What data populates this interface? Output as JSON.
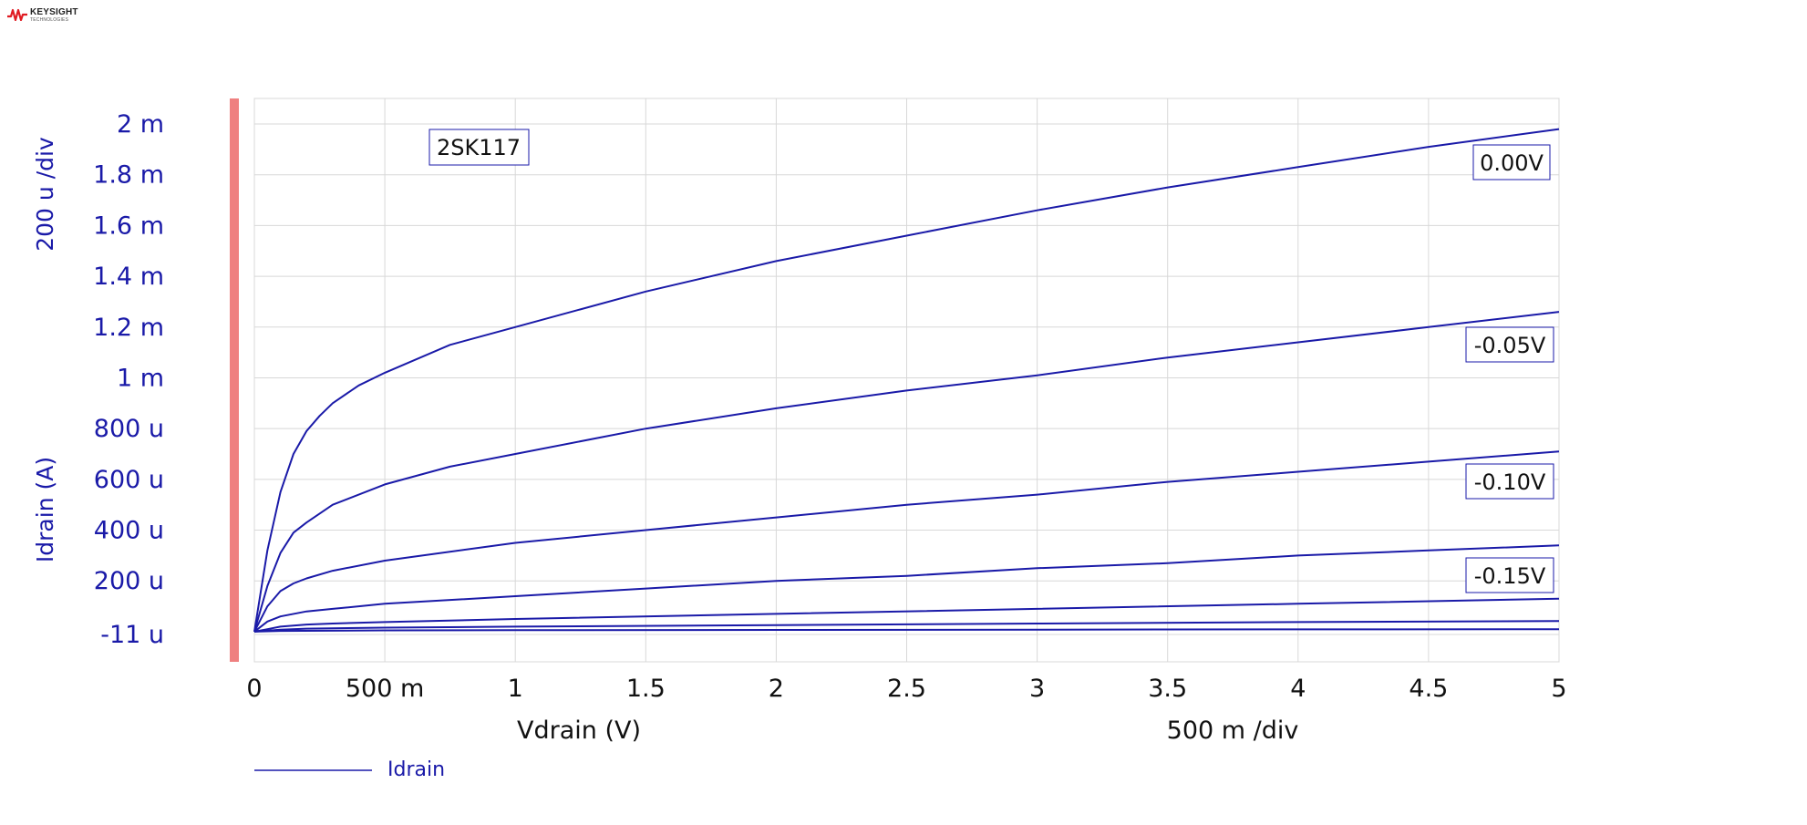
{
  "logo": {
    "name": "KEYSIGHT",
    "subtitle": "TECHNOLOGIES"
  },
  "colors": {
    "series": "#1a1aa8",
    "axis_text": "#1a1aa8",
    "x_axis_text": "#111111",
    "grid": "#d8d8d8",
    "marker_bar": "#ef8080"
  },
  "chart_data": {
    "type": "line",
    "annotation": "2SK117",
    "xlabel": "Vdrain (V)",
    "ylabel": "Idrain (A)",
    "x_div_label": "500 m /div",
    "y_div_label": "200 u /div",
    "xlim": [
      0,
      5
    ],
    "ylim": [
      -1.1e-05,
      0.002
    ],
    "x_ticks": [
      {
        "value": 0,
        "label": "0"
      },
      {
        "value": 0.5,
        "label": "500 m"
      },
      {
        "value": 1,
        "label": "1"
      },
      {
        "value": 1.5,
        "label": "1.5"
      },
      {
        "value": 2,
        "label": "2"
      },
      {
        "value": 2.5,
        "label": "2.5"
      },
      {
        "value": 3,
        "label": "3"
      },
      {
        "value": 3.5,
        "label": "3.5"
      },
      {
        "value": 4,
        "label": "4"
      },
      {
        "value": 4.5,
        "label": "4.5"
      },
      {
        "value": 5,
        "label": "5"
      }
    ],
    "y_ticks": [
      {
        "value": -1.1e-05,
        "label": "-11 u"
      },
      {
        "value": 0.0002,
        "label": "200 u"
      },
      {
        "value": 0.0004,
        "label": "400 u"
      },
      {
        "value": 0.0006,
        "label": "600 u"
      },
      {
        "value": 0.0008,
        "label": "800 u"
      },
      {
        "value": 0.001,
        "label": "1 m"
      },
      {
        "value": 0.0012,
        "label": "1.2 m"
      },
      {
        "value": 0.0014,
        "label": "1.4 m"
      },
      {
        "value": 0.0016,
        "label": "1.6 m"
      },
      {
        "value": 0.0018,
        "label": "1.8 m"
      },
      {
        "value": 0.002,
        "label": "2 m"
      }
    ],
    "grid": true,
    "legend": {
      "placement": "bottom-left",
      "entries": [
        "Idrain"
      ]
    },
    "series": [
      {
        "label": "0.00V",
        "x": [
          0,
          0.05,
          0.1,
          0.15,
          0.2,
          0.25,
          0.3,
          0.4,
          0.5,
          0.75,
          1,
          1.5,
          2,
          2.5,
          3,
          3.5,
          4,
          4.5,
          5
        ],
        "y": [
          0,
          0.00032,
          0.00055,
          0.0007,
          0.00079,
          0.00085,
          0.0009,
          0.00097,
          0.00102,
          0.00113,
          0.0012,
          0.00134,
          0.00146,
          0.00156,
          0.00166,
          0.00175,
          0.00183,
          0.00191,
          0.00198
        ]
      },
      {
        "label": "-0.05V",
        "x": [
          0,
          0.05,
          0.1,
          0.15,
          0.2,
          0.3,
          0.5,
          0.75,
          1,
          1.5,
          2,
          2.5,
          3,
          3.5,
          4,
          4.5,
          5
        ],
        "y": [
          0,
          0.00018,
          0.00031,
          0.00039,
          0.00043,
          0.0005,
          0.00058,
          0.00065,
          0.0007,
          0.0008,
          0.00088,
          0.00095,
          0.00101,
          0.00108,
          0.00114,
          0.0012,
          0.00126
        ]
      },
      {
        "label": "-0.10V",
        "x": [
          0,
          0.05,
          0.1,
          0.15,
          0.2,
          0.3,
          0.5,
          1,
          1.5,
          2,
          2.5,
          3,
          3.5,
          4,
          4.5,
          5
        ],
        "y": [
          0,
          0.0001,
          0.00016,
          0.00019,
          0.00021,
          0.00024,
          0.00028,
          0.00035,
          0.0004,
          0.00045,
          0.0005,
          0.00054,
          0.00059,
          0.00063,
          0.00067,
          0.00071
        ]
      },
      {
        "label": "-0.15V",
        "x": [
          0,
          0.05,
          0.1,
          0.2,
          0.3,
          0.5,
          1,
          1.5,
          2,
          2.5,
          3,
          3.5,
          4,
          4.5,
          5
        ],
        "y": [
          0,
          4e-05,
          6e-05,
          8e-05,
          9e-05,
          0.00011,
          0.00014,
          0.00017,
          0.0002,
          0.00022,
          0.00025,
          0.00027,
          0.0003,
          0.00032,
          0.00034
        ]
      },
      {
        "x": [
          0,
          0.05,
          0.1,
          0.2,
          0.3,
          0.5,
          1,
          2,
          3,
          4,
          5
        ],
        "y": [
          0,
          1e-05,
          2e-05,
          2.8e-05,
          3.2e-05,
          3.8e-05,
          5e-05,
          7e-05,
          9e-05,
          0.00011,
          0.00013
        ]
      },
      {
        "x": [
          0,
          0.1,
          0.2,
          0.5,
          1,
          2,
          3,
          4,
          5
        ],
        "y": [
          0,
          8e-06,
          1.2e-05,
          1.6e-05,
          2e-05,
          2.6e-05,
          3.2e-05,
          3.8e-05,
          4.2e-05
        ]
      },
      {
        "x": [
          0,
          0.1,
          0.5,
          1,
          2,
          3,
          4,
          5
        ],
        "y": [
          0,
          3e-06,
          5e-06,
          6e-06,
          7e-06,
          8e-06,
          9e-06,
          1e-05
        ]
      }
    ]
  }
}
